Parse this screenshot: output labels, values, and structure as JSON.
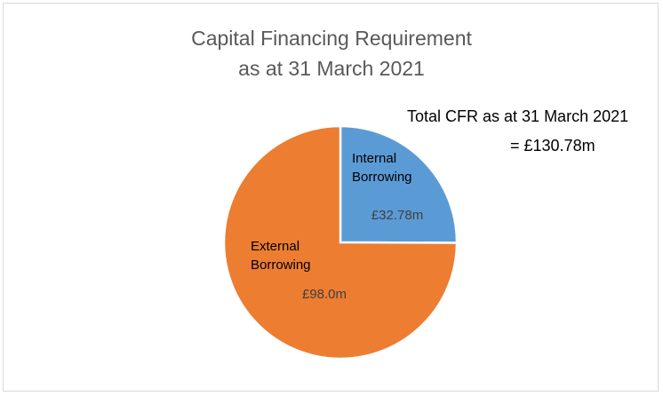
{
  "chart_data": {
    "type": "pie",
    "title": [
      "Capital Financing Requirement",
      "as at 31 March 2021"
    ],
    "annotation": {
      "line1": "Total CFR as at 31 March 2021",
      "line2": "= £130.78m"
    },
    "slices": [
      {
        "label_lines": [
          "Internal",
          "Borrowing"
        ],
        "value": 32.78,
        "value_label": "£32.78m",
        "color": "#5b9bd5"
      },
      {
        "label_lines": [
          "External",
          "Borrowing"
        ],
        "value": 98.0,
        "value_label": "£98.0m",
        "color": "#ed7d31"
      }
    ],
    "legend": "none"
  }
}
